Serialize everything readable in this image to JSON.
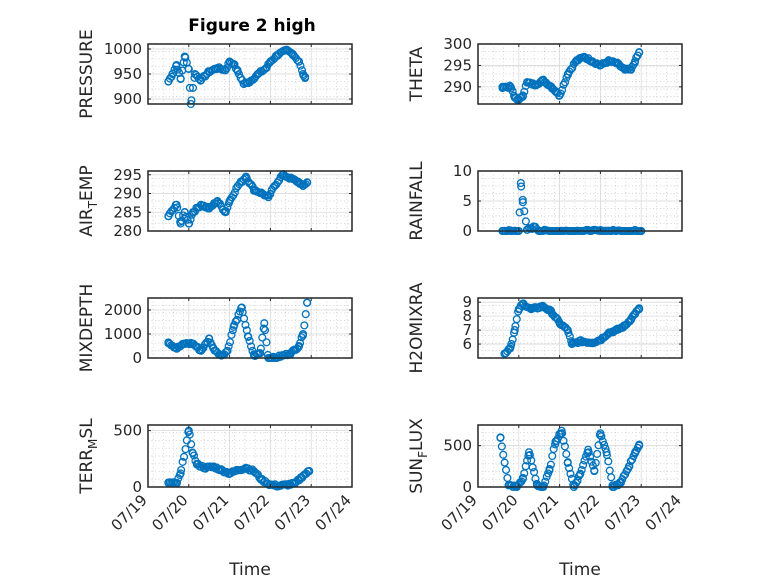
{
  "figure": {
    "title": "Figure 2 high",
    "color": "#0072BD"
  },
  "chart_data": [
    {
      "type": "scatter",
      "ylabel": "PRESSURE",
      "xlabel": "",
      "xlim": [
        0,
        5
      ],
      "ylim": [
        890,
        1010
      ],
      "yticks": [
        900,
        950,
        1000
      ],
      "ytick_labels": [
        "900",
        "950",
        "1000"
      ],
      "xticks": [
        0,
        1,
        2,
        3,
        4,
        5
      ],
      "xtick_labels": [],
      "grid": true,
      "keypoints": [
        [
          0.5,
          935
        ],
        [
          0.6,
          950
        ],
        [
          0.7,
          968
        ],
        [
          0.8,
          940
        ],
        [
          0.9,
          985
        ],
        [
          1.0,
          960
        ],
        [
          1.05,
          890
        ],
        [
          1.15,
          950
        ],
        [
          1.3,
          938
        ],
        [
          1.5,
          955
        ],
        [
          1.7,
          962
        ],
        [
          1.9,
          958
        ],
        [
          2.0,
          975
        ],
        [
          2.1,
          970
        ],
        [
          2.2,
          955
        ],
        [
          2.35,
          930
        ],
        [
          2.5,
          935
        ],
        [
          2.7,
          950
        ],
        [
          2.9,
          962
        ],
        [
          3.0,
          975
        ],
        [
          3.2,
          990
        ],
        [
          3.4,
          997
        ],
        [
          3.55,
          990
        ],
        [
          3.7,
          975
        ],
        [
          3.8,
          950
        ],
        [
          3.85,
          942
        ]
      ],
      "n_points": 90
    },
    {
      "type": "scatter",
      "ylabel": "THETA",
      "xlabel": "",
      "xlim": [
        0,
        5
      ],
      "ylim": [
        286,
        300
      ],
      "yticks": [
        290,
        295,
        300
      ],
      "ytick_labels": [
        "290",
        "295",
        "300"
      ],
      "xticks": [
        0,
        1,
        2,
        3,
        4,
        5
      ],
      "xtick_labels": [],
      "grid": true,
      "keypoints": [
        [
          0.6,
          290
        ],
        [
          0.8,
          290
        ],
        [
          0.9,
          287.5
        ],
        [
          1.0,
          287
        ],
        [
          1.1,
          288
        ],
        [
          1.2,
          291
        ],
        [
          1.4,
          290.5
        ],
        [
          1.6,
          291.5
        ],
        [
          1.8,
          290
        ],
        [
          1.9,
          289
        ],
        [
          2.0,
          288
        ],
        [
          2.2,
          293
        ],
        [
          2.4,
          296
        ],
        [
          2.6,
          297
        ],
        [
          2.8,
          296
        ],
        [
          3.0,
          295
        ],
        [
          3.2,
          296
        ],
        [
          3.4,
          295.5
        ],
        [
          3.6,
          294
        ],
        [
          3.75,
          294
        ],
        [
          3.85,
          296
        ],
        [
          3.95,
          298
        ]
      ],
      "n_points": 95
    },
    {
      "type": "scatter",
      "ylabel": "AIR_TEMP",
      "xlabel": "",
      "xlim": [
        0,
        5
      ],
      "ylim": [
        280,
        296
      ],
      "yticks": [
        280,
        285,
        290,
        295
      ],
      "ytick_labels": [
        "280",
        "285",
        "290",
        "295"
      ],
      "xticks": [
        0,
        1,
        2,
        3,
        4,
        5
      ],
      "xtick_labels": [],
      "grid": true,
      "keypoints": [
        [
          0.5,
          284
        ],
        [
          0.7,
          287
        ],
        [
          0.8,
          282
        ],
        [
          0.9,
          285
        ],
        [
          1.0,
          282
        ],
        [
          1.1,
          285
        ],
        [
          1.3,
          287
        ],
        [
          1.5,
          286
        ],
        [
          1.7,
          288
        ],
        [
          1.9,
          285
        ],
        [
          2.0,
          288
        ],
        [
          2.2,
          292
        ],
        [
          2.4,
          294.5
        ],
        [
          2.6,
          291
        ],
        [
          2.8,
          290
        ],
        [
          2.95,
          289
        ],
        [
          3.1,
          292
        ],
        [
          3.3,
          295
        ],
        [
          3.5,
          294
        ],
        [
          3.7,
          293
        ],
        [
          3.8,
          292
        ],
        [
          3.9,
          293
        ]
      ],
      "n_points": 95
    },
    {
      "type": "scatter",
      "ylabel": "RAINFALL",
      "xlabel": "",
      "xlim": [
        0,
        5
      ],
      "ylim": [
        0,
        10
      ],
      "yticks": [
        0,
        5,
        10
      ],
      "ytick_labels": [
        "0",
        "5",
        "10"
      ],
      "xticks": [
        0,
        1,
        2,
        3,
        4,
        5
      ],
      "xtick_labels": [],
      "grid": true,
      "keypoints": [
        [
          0.6,
          0
        ],
        [
          0.8,
          0
        ],
        [
          1.0,
          0
        ],
        [
          1.05,
          8
        ],
        [
          1.1,
          4.8
        ],
        [
          1.2,
          0.2
        ],
        [
          1.4,
          0.7
        ],
        [
          1.5,
          0
        ],
        [
          2.0,
          0
        ],
        [
          3.0,
          0
        ],
        [
          4.0,
          0
        ]
      ],
      "n_points": 90
    },
    {
      "type": "scatter",
      "ylabel": "MIXDEPTH",
      "xlabel": "",
      "xlim": [
        0,
        5
      ],
      "ylim": [
        0,
        2500
      ],
      "yticks": [
        0,
        1000,
        2000
      ],
      "ytick_labels": [
        "0",
        "1000",
        "2000"
      ],
      "xticks": [
        0,
        1,
        2,
        3,
        4,
        5
      ],
      "xtick_labels": [],
      "grid": true,
      "keypoints": [
        [
          0.5,
          650
        ],
        [
          0.7,
          400
        ],
        [
          0.9,
          600
        ],
        [
          1.1,
          600
        ],
        [
          1.3,
          300
        ],
        [
          1.5,
          800
        ],
        [
          1.6,
          400
        ],
        [
          1.8,
          100
        ],
        [
          1.95,
          300
        ],
        [
          2.1,
          1300
        ],
        [
          2.3,
          2100
        ],
        [
          2.45,
          900
        ],
        [
          2.6,
          100
        ],
        [
          2.75,
          200
        ],
        [
          2.85,
          1450
        ],
        [
          2.95,
          0
        ],
        [
          3.1,
          0
        ],
        [
          3.3,
          100
        ],
        [
          3.5,
          200
        ],
        [
          3.7,
          500
        ],
        [
          3.8,
          1000
        ],
        [
          3.9,
          2300
        ]
      ],
      "n_points": 100
    },
    {
      "type": "scatter",
      "ylabel": "H2OMIXRA",
      "xlabel": "",
      "xlim": [
        0,
        5
      ],
      "ylim": [
        5,
        9.3
      ],
      "yticks": [
        6,
        7,
        8,
        9
      ],
      "ytick_labels": [
        "6",
        "7",
        "8",
        "9"
      ],
      "xticks": [
        0,
        1,
        2,
        3,
        4,
        5
      ],
      "xtick_labels": [],
      "grid": true,
      "keypoints": [
        [
          0.65,
          5.3
        ],
        [
          0.8,
          5.8
        ],
        [
          0.9,
          7
        ],
        [
          1.0,
          8.5
        ],
        [
          1.1,
          8.9
        ],
        [
          1.3,
          8.5
        ],
        [
          1.6,
          8.7
        ],
        [
          1.8,
          8.3
        ],
        [
          2.0,
          7.5
        ],
        [
          2.2,
          7
        ],
        [
          2.3,
          6
        ],
        [
          2.5,
          6.2
        ],
        [
          2.8,
          6.1
        ],
        [
          3.0,
          6.3
        ],
        [
          3.2,
          6.8
        ],
        [
          3.4,
          7
        ],
        [
          3.6,
          7.3
        ],
        [
          3.75,
          7.8
        ],
        [
          3.85,
          8.2
        ],
        [
          3.95,
          8.5
        ]
      ],
      "n_points": 100
    },
    {
      "type": "scatter",
      "ylabel": "TERR_MSL",
      "xlabel": "Time",
      "xlim": [
        0,
        5
      ],
      "ylim": [
        0,
        550
      ],
      "yticks": [
        0,
        500
      ],
      "ytick_labels": [
        "0",
        "500"
      ],
      "xticks": [
        0,
        1,
        2,
        3,
        4,
        5
      ],
      "xtick_labels": [
        "07/19",
        "07/20",
        "07/21",
        "07/22",
        "07/23",
        "07/24"
      ],
      "grid": true,
      "keypoints": [
        [
          0.5,
          40
        ],
        [
          0.7,
          30
        ],
        [
          0.8,
          120
        ],
        [
          1.0,
          500
        ],
        [
          1.1,
          300
        ],
        [
          1.2,
          200
        ],
        [
          1.4,
          170
        ],
        [
          1.6,
          180
        ],
        [
          1.8,
          150
        ],
        [
          2.0,
          120
        ],
        [
          2.2,
          150
        ],
        [
          2.4,
          170
        ],
        [
          2.6,
          140
        ],
        [
          2.8,
          60
        ],
        [
          3.0,
          20
        ],
        [
          3.2,
          10
        ],
        [
          3.4,
          20
        ],
        [
          3.6,
          30
        ],
        [
          3.8,
          100
        ],
        [
          3.95,
          140
        ]
      ],
      "n_points": 100
    },
    {
      "type": "scatter",
      "ylabel": "SUN_FLUX",
      "xlabel": "Time",
      "xlim": [
        0,
        5
      ],
      "ylim": [
        0,
        750
      ],
      "yticks": [
        0,
        500
      ],
      "ytick_labels": [
        "0",
        "500"
      ],
      "xticks": [
        0,
        1,
        2,
        3,
        4,
        5
      ],
      "xtick_labels": [
        "07/19",
        "07/20",
        "07/21",
        "07/22",
        "07/23",
        "07/24"
      ],
      "grid": true,
      "keypoints": [
        [
          0.55,
          600
        ],
        [
          0.75,
          20
        ],
        [
          0.95,
          0
        ],
        [
          1.1,
          100
        ],
        [
          1.25,
          420
        ],
        [
          1.45,
          20
        ],
        [
          1.6,
          0
        ],
        [
          1.75,
          200
        ],
        [
          1.9,
          550
        ],
        [
          2.05,
          680
        ],
        [
          2.2,
          300
        ],
        [
          2.35,
          0
        ],
        [
          2.5,
          150
        ],
        [
          2.7,
          450
        ],
        [
          2.85,
          200
        ],
        [
          3.0,
          650
        ],
        [
          3.15,
          420
        ],
        [
          3.3,
          0
        ],
        [
          3.5,
          50
        ],
        [
          3.7,
          250
        ],
        [
          3.85,
          420
        ],
        [
          3.95,
          500
        ]
      ],
      "n_points": 100
    }
  ]
}
